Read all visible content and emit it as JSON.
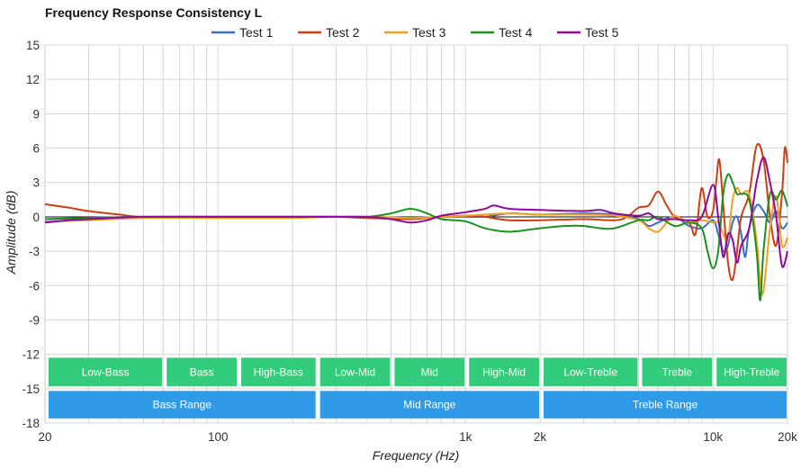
{
  "chart_data": {
    "type": "line",
    "title": "Frequency Response Consistency L",
    "xlabel": "Frequency (Hz)",
    "ylabel": "Amplitude (dB)",
    "xscale": "log",
    "xlim": [
      20,
      20000
    ],
    "ylim": [
      -18,
      15
    ],
    "grid": true,
    "legend_position": "top-center",
    "x_tick_labels": [
      {
        "value": 20,
        "label": "20"
      },
      {
        "value": 100,
        "label": "100"
      },
      {
        "value": 1000,
        "label": "1k"
      },
      {
        "value": 2000,
        "label": "2k"
      },
      {
        "value": 10000,
        "label": "10k"
      },
      {
        "value": 20000,
        "label": "20k"
      }
    ],
    "y_ticks": [
      15,
      12,
      9,
      6,
      3,
      0,
      -3,
      -6,
      -9,
      -12,
      -15,
      -18
    ],
    "series": [
      {
        "name": "Test 1",
        "color": "#3a6fc4",
        "points": [
          [
            20,
            -0.2
          ],
          [
            30,
            -0.1
          ],
          [
            50,
            0
          ],
          [
            100,
            0
          ],
          [
            200,
            0
          ],
          [
            400,
            0
          ],
          [
            600,
            -0.1
          ],
          [
            800,
            0
          ],
          [
            1000,
            0
          ],
          [
            1200,
            0
          ],
          [
            1500,
            0.3
          ],
          [
            2000,
            0.2
          ],
          [
            3000,
            0.3
          ],
          [
            4000,
            0.2
          ],
          [
            5000,
            -0.2
          ],
          [
            5500,
            -0.8
          ],
          [
            6000,
            -0.5
          ],
          [
            7000,
            0
          ],
          [
            8000,
            -0.8
          ],
          [
            9000,
            -1
          ],
          [
            10000,
            -0.3
          ],
          [
            10500,
            -1.5
          ],
          [
            11000,
            -3
          ],
          [
            11500,
            -2.5
          ],
          [
            12000,
            -0.5
          ],
          [
            12500,
            0
          ],
          [
            13000,
            -1.5
          ],
          [
            13500,
            -3.5
          ],
          [
            14000,
            -1
          ],
          [
            15000,
            1
          ],
          [
            16000,
            0.5
          ],
          [
            17000,
            -0.5
          ],
          [
            18000,
            0.5
          ],
          [
            19000,
            -1
          ],
          [
            20000,
            -0.5
          ]
        ]
      },
      {
        "name": "Test 2",
        "color": "#cc3f15",
        "points": [
          [
            20,
            1.1
          ],
          [
            25,
            0.8
          ],
          [
            30,
            0.5
          ],
          [
            40,
            0.2
          ],
          [
            50,
            0
          ],
          [
            100,
            0
          ],
          [
            200,
            0
          ],
          [
            300,
            0
          ],
          [
            400,
            -0.1
          ],
          [
            600,
            -0.2
          ],
          [
            800,
            0
          ],
          [
            1000,
            0.1
          ],
          [
            1200,
            0
          ],
          [
            1500,
            -0.3
          ],
          [
            2000,
            -0.3
          ],
          [
            3000,
            -0.2
          ],
          [
            4000,
            -0.3
          ],
          [
            4500,
            0
          ],
          [
            5000,
            0.8
          ],
          [
            5500,
            1
          ],
          [
            6000,
            2.2
          ],
          [
            6500,
            1
          ],
          [
            7000,
            0
          ],
          [
            8000,
            -0.5
          ],
          [
            8500,
            -1.5
          ],
          [
            9000,
            2.5
          ],
          [
            9500,
            0
          ],
          [
            10000,
            0.5
          ],
          [
            10300,
            3
          ],
          [
            10600,
            5
          ],
          [
            11000,
            1
          ],
          [
            11500,
            -4
          ],
          [
            12000,
            -5.5
          ],
          [
            12500,
            -3
          ],
          [
            13000,
            0
          ],
          [
            14000,
            2
          ],
          [
            15000,
            6.2
          ],
          [
            16000,
            5
          ],
          [
            17000,
            0
          ],
          [
            18000,
            -2.5
          ],
          [
            19000,
            2
          ],
          [
            19500,
            6
          ],
          [
            20000,
            4.7
          ]
        ]
      },
      {
        "name": "Test 3",
        "color": "#f2a025",
        "points": [
          [
            20,
            -0.4
          ],
          [
            30,
            -0.3
          ],
          [
            50,
            -0.1
          ],
          [
            100,
            -0.1
          ],
          [
            200,
            -0.1
          ],
          [
            300,
            0
          ],
          [
            400,
            0
          ],
          [
            600,
            -0.1
          ],
          [
            800,
            0
          ],
          [
            1000,
            0.1
          ],
          [
            1200,
            0.2
          ],
          [
            1500,
            0.3
          ],
          [
            2000,
            0.2
          ],
          [
            3000,
            0.2
          ],
          [
            4000,
            0.1
          ],
          [
            5000,
            -0.3
          ],
          [
            5500,
            -1
          ],
          [
            6000,
            -1.3
          ],
          [
            6500,
            -0.5
          ],
          [
            7000,
            0.1
          ],
          [
            8000,
            -0.5
          ],
          [
            9000,
            -0.3
          ],
          [
            10000,
            -0.5
          ],
          [
            10500,
            -0.5
          ],
          [
            11000,
            -1.5
          ],
          [
            11500,
            -2
          ],
          [
            12000,
            1.5
          ],
          [
            12500,
            2.5
          ],
          [
            13000,
            2
          ],
          [
            14000,
            2
          ],
          [
            15000,
            -2
          ],
          [
            15500,
            -5.5
          ],
          [
            16000,
            -6.5
          ],
          [
            17000,
            -1
          ],
          [
            18000,
            1.8
          ],
          [
            19000,
            -2.5
          ],
          [
            20000,
            -1.8
          ]
        ]
      },
      {
        "name": "Test 4",
        "color": "#1f8f1f",
        "points": [
          [
            20,
            -0.2
          ],
          [
            30,
            -0.1
          ],
          [
            50,
            0
          ],
          [
            100,
            0
          ],
          [
            200,
            0
          ],
          [
            300,
            0
          ],
          [
            400,
            0
          ],
          [
            500,
            0.3
          ],
          [
            600,
            0.7
          ],
          [
            700,
            0.3
          ],
          [
            800,
            -0.2
          ],
          [
            1000,
            -0.4
          ],
          [
            1200,
            -1
          ],
          [
            1500,
            -1.3
          ],
          [
            2000,
            -1
          ],
          [
            2500,
            -0.8
          ],
          [
            3000,
            -0.8
          ],
          [
            3500,
            -1
          ],
          [
            4000,
            -1
          ],
          [
            5000,
            -0.3
          ],
          [
            5500,
            -0.3
          ],
          [
            6000,
            0
          ],
          [
            7000,
            -0.8
          ],
          [
            8000,
            -0.5
          ],
          [
            9000,
            -1
          ],
          [
            9500,
            -3
          ],
          [
            10000,
            -4.5
          ],
          [
            10500,
            -3
          ],
          [
            11000,
            2
          ],
          [
            11500,
            3.7
          ],
          [
            12000,
            3
          ],
          [
            12500,
            2
          ],
          [
            13000,
            2
          ],
          [
            14000,
            1.5
          ],
          [
            15000,
            -3
          ],
          [
            15500,
            -7.3
          ],
          [
            16000,
            -3
          ],
          [
            17000,
            2
          ],
          [
            18000,
            1.5
          ],
          [
            19000,
            2.3
          ],
          [
            20000,
            0.9
          ]
        ]
      },
      {
        "name": "Test 5",
        "color": "#8d0a9c",
        "points": [
          [
            20,
            -0.5
          ],
          [
            25,
            -0.3
          ],
          [
            30,
            -0.2
          ],
          [
            50,
            0
          ],
          [
            100,
            0
          ],
          [
            200,
            0
          ],
          [
            300,
            0
          ],
          [
            400,
            0
          ],
          [
            500,
            -0.2
          ],
          [
            600,
            -0.5
          ],
          [
            700,
            -0.3
          ],
          [
            800,
            0.1
          ],
          [
            1000,
            0.4
          ],
          [
            1200,
            0.7
          ],
          [
            1300,
            1
          ],
          [
            1500,
            0.7
          ],
          [
            2000,
            0.6
          ],
          [
            3000,
            0.5
          ],
          [
            3500,
            0.6
          ],
          [
            4000,
            0.3
          ],
          [
            5000,
            0.1
          ],
          [
            5500,
            0.3
          ],
          [
            6000,
            -0.2
          ],
          [
            7000,
            -0.2
          ],
          [
            8000,
            -0.3
          ],
          [
            9000,
            0
          ],
          [
            10000,
            2.8
          ],
          [
            10500,
            0
          ],
          [
            11000,
            -3.5
          ],
          [
            11500,
            -1.5
          ],
          [
            12000,
            -2
          ],
          [
            12500,
            -4
          ],
          [
            13000,
            -2.5
          ],
          [
            14000,
            -1
          ],
          [
            15000,
            3
          ],
          [
            16000,
            5.2
          ],
          [
            17000,
            3
          ],
          [
            18000,
            0
          ],
          [
            19000,
            -4.3
          ],
          [
            20000,
            -3
          ]
        ]
      }
    ],
    "bands": [
      {
        "label": "Low-Bass",
        "from": 20,
        "to": 60
      },
      {
        "label": "Bass",
        "from": 60,
        "to": 120
      },
      {
        "label": "High-Bass",
        "from": 120,
        "to": 250
      },
      {
        "label": "Low-Mid",
        "from": 250,
        "to": 500
      },
      {
        "label": "Mid",
        "from": 500,
        "to": 1000
      },
      {
        "label": "High-Mid",
        "from": 1000,
        "to": 2000
      },
      {
        "label": "Low-Treble",
        "from": 2000,
        "to": 5000
      },
      {
        "label": "Treble",
        "from": 5000,
        "to": 10000
      },
      {
        "label": "High-Treble",
        "from": 10000,
        "to": 20000
      }
    ],
    "ranges": [
      {
        "label": "Bass Range",
        "from": 20,
        "to": 250
      },
      {
        "label": "Mid Range",
        "from": 250,
        "to": 2000
      },
      {
        "label": "Treble Range",
        "from": 2000,
        "to": 20000
      }
    ],
    "band_color": "#33cc7a",
    "range_color": "#2f9be6"
  }
}
